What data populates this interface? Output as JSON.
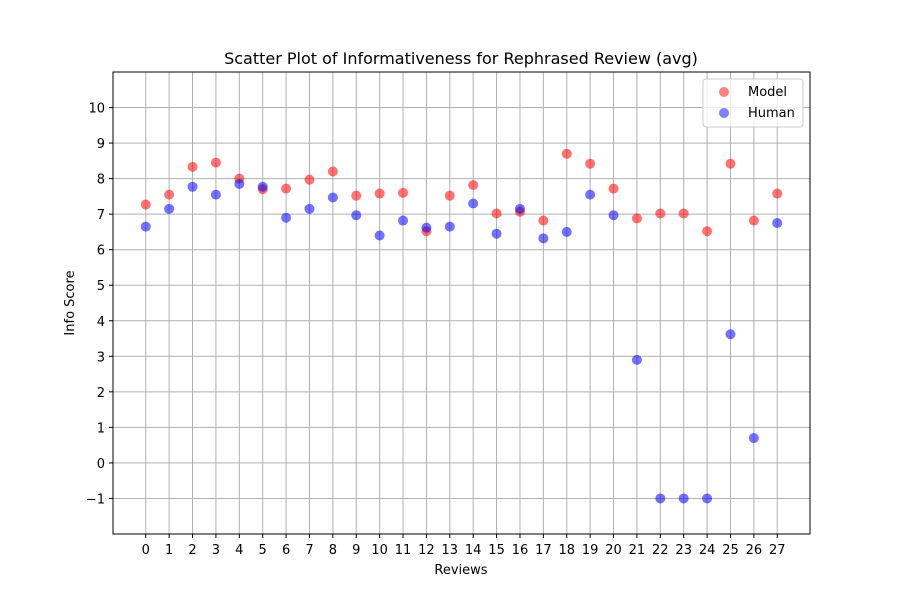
{
  "chart_data": {
    "type": "scatter",
    "title": "Scatter Plot of Informativeness for Rephrased Review (avg)",
    "xlabel": "Reviews",
    "ylabel": "Info Score",
    "x": [
      0,
      1,
      2,
      3,
      4,
      5,
      6,
      7,
      8,
      9,
      10,
      11,
      12,
      13,
      14,
      15,
      16,
      17,
      18,
      19,
      20,
      21,
      22,
      23,
      24,
      25,
      26,
      27
    ],
    "x_ticks": [
      0,
      1,
      2,
      3,
      4,
      5,
      6,
      7,
      8,
      9,
      10,
      11,
      12,
      13,
      14,
      15,
      16,
      17,
      18,
      19,
      20,
      21,
      22,
      23,
      24,
      25,
      26,
      27
    ],
    "y_ticks": [
      -1,
      0,
      1,
      2,
      3,
      4,
      5,
      6,
      7,
      8,
      9,
      10
    ],
    "xlim": [
      -1.4,
      28.4
    ],
    "ylim": [
      -2.0,
      11.0
    ],
    "grid": true,
    "legend_position": "top-right",
    "series": [
      {
        "name": "Model",
        "color": "#ff0000",
        "values": [
          7.27,
          7.55,
          8.33,
          8.45,
          8.0,
          7.7,
          7.72,
          7.97,
          8.2,
          7.52,
          7.58,
          7.6,
          6.52,
          7.52,
          7.82,
          7.02,
          7.07,
          6.82,
          8.7,
          8.42,
          7.72,
          6.88,
          7.02,
          7.02,
          6.52,
          8.42,
          6.82,
          7.58
        ]
      },
      {
        "name": "Human",
        "color": "#0000ff",
        "values": [
          6.65,
          7.15,
          7.77,
          7.55,
          7.85,
          7.77,
          6.9,
          7.15,
          7.47,
          6.97,
          6.4,
          6.82,
          6.62,
          6.65,
          7.3,
          6.45,
          7.15,
          6.32,
          6.5,
          7.55,
          6.97,
          2.9,
          -1.0,
          -1.0,
          -1.0,
          3.62,
          0.7,
          6.75
        ]
      }
    ]
  }
}
